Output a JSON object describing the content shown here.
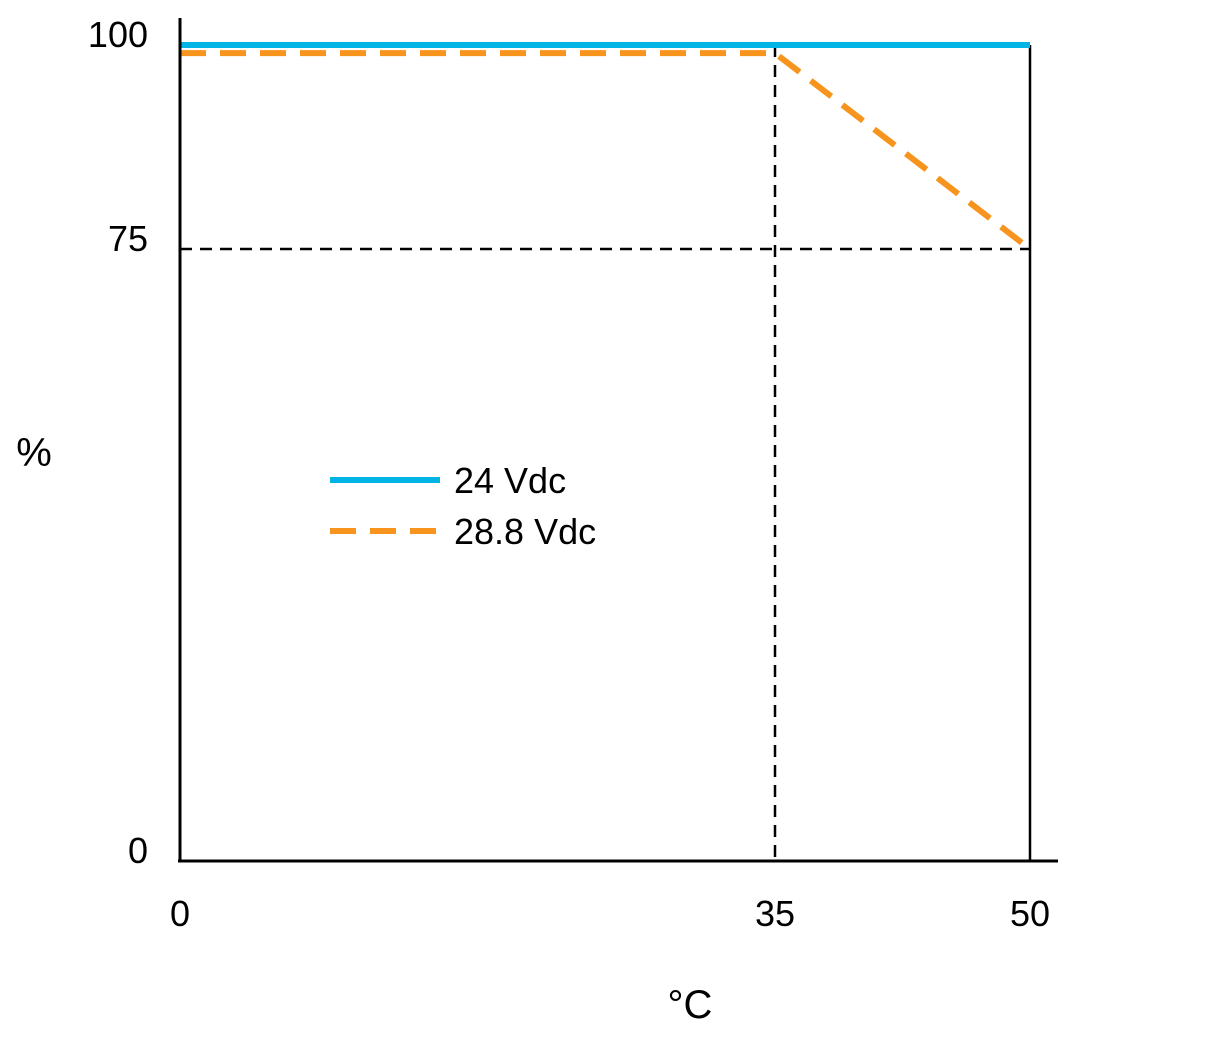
{
  "chart_data": {
    "type": "line",
    "title": "",
    "xlabel": "°C",
    "ylabel": "%",
    "xlim": [
      0,
      50
    ],
    "ylim": [
      0,
      100
    ],
    "xticks": [
      "0",
      "35",
      "50"
    ],
    "yticks": [
      "0",
      "75",
      "100"
    ],
    "grid": false,
    "reference_lines": [
      {
        "orientation": "vertical",
        "x": 35,
        "style": "dashed"
      },
      {
        "orientation": "vertical",
        "x": 50,
        "style": "solid"
      },
      {
        "orientation": "horizontal",
        "y": 75,
        "style": "dashed"
      }
    ],
    "legend_position": "center-left",
    "series": [
      {
        "name": "24 Vdc",
        "color": "#00b4e6",
        "style": "solid",
        "x": [
          0,
          50
        ],
        "y": [
          100,
          100
        ]
      },
      {
        "name": "28.8 Vdc",
        "color": "#f7941d",
        "style": "dashed",
        "x": [
          0,
          35,
          50
        ],
        "y": [
          99,
          99,
          75
        ]
      }
    ]
  }
}
